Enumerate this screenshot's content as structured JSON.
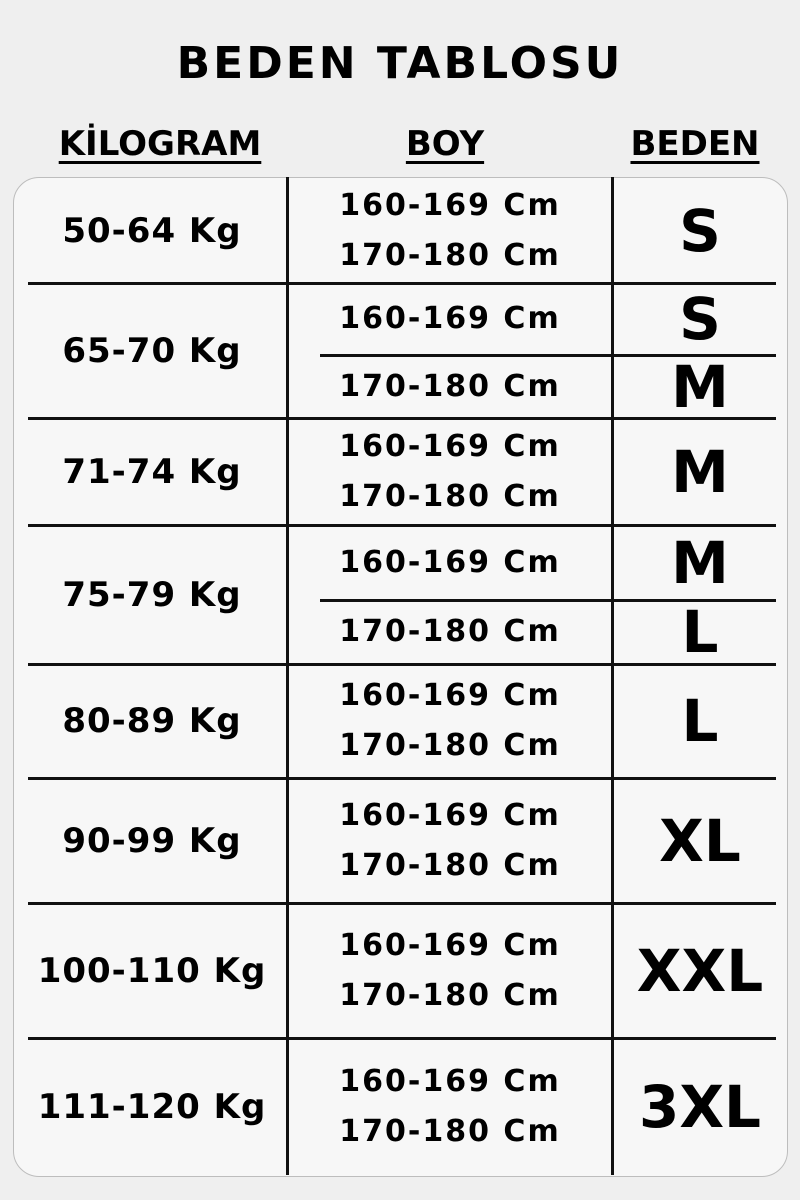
{
  "title": "BEDEN TABLOSU",
  "headers": {
    "kilogram": "KİLOGRAM",
    "boy": "BOY",
    "beden": "BEDEN"
  },
  "rows": [
    {
      "kg": "50-64 Kg",
      "heights": [
        "160-169 Cm",
        "170-180 Cm"
      ],
      "sizes": [
        "S"
      ]
    },
    {
      "kg": "65-70 Kg",
      "heights": [
        "160-169 Cm",
        "170-180 Cm"
      ],
      "sizes": [
        "S",
        "M"
      ]
    },
    {
      "kg": "71-74 Kg",
      "heights": [
        "160-169 Cm",
        "170-180 Cm"
      ],
      "sizes": [
        "M"
      ]
    },
    {
      "kg": "75-79 Kg",
      "heights": [
        "160-169 Cm",
        "170-180 Cm"
      ],
      "sizes": [
        "M",
        "L"
      ]
    },
    {
      "kg": "80-89 Kg",
      "heights": [
        "160-169 Cm",
        "170-180 Cm"
      ],
      "sizes": [
        "L"
      ]
    },
    {
      "kg": "90-99 Kg",
      "heights": [
        "160-169 Cm",
        "170-180 Cm"
      ],
      "sizes": [
        "XL"
      ]
    },
    {
      "kg": "100-110 Kg",
      "heights": [
        "160-169 Cm",
        "170-180 Cm"
      ],
      "sizes": [
        "XXL"
      ]
    },
    {
      "kg": "111-120 Kg",
      "heights": [
        "160-169 Cm",
        "170-180 Cm"
      ],
      "sizes": [
        "3XL"
      ]
    }
  ]
}
